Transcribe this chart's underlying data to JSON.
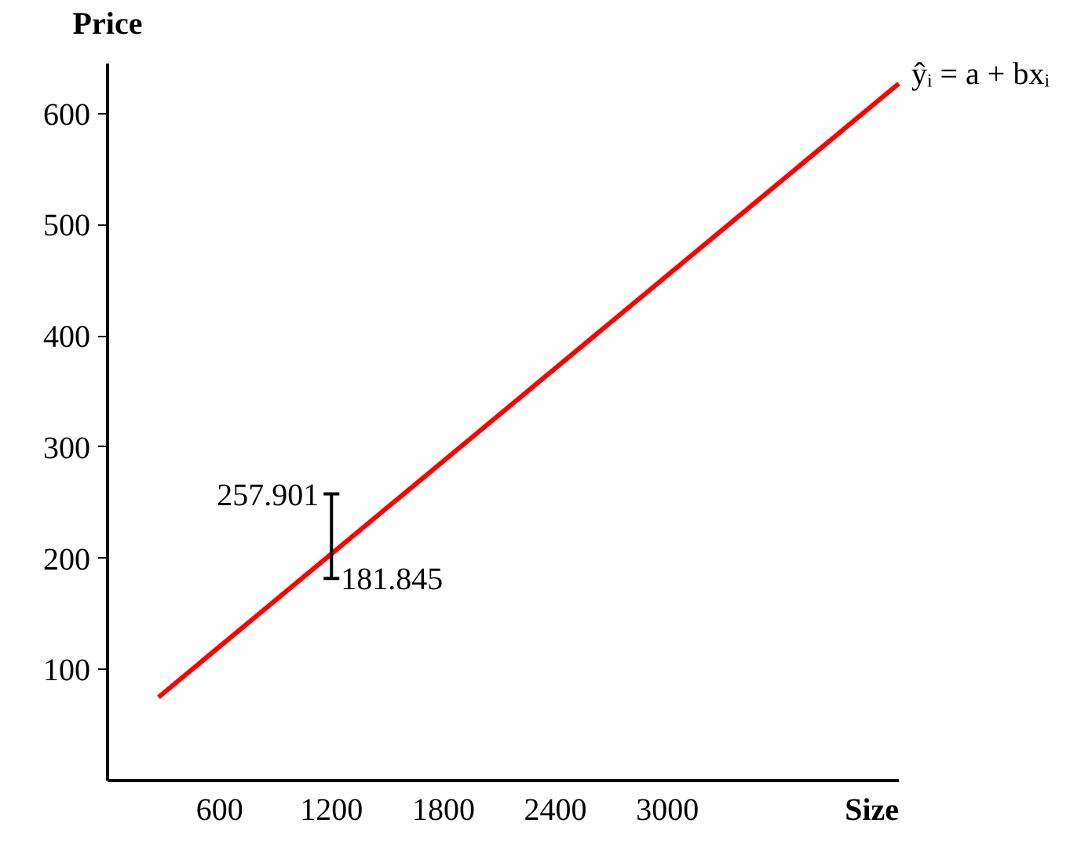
{
  "chart_data": {
    "type": "line",
    "xlabel": "Size",
    "ylabel": "Price",
    "xlim": [
      0,
      4240
    ],
    "ylim": [
      0,
      645
    ],
    "xticks": [
      600,
      1200,
      1800,
      2400,
      3000
    ],
    "yticks": [
      100,
      200,
      300,
      400,
      500,
      600
    ],
    "grid": false,
    "marker": "none",
    "line_style": "solid",
    "series": [
      {
        "name": "ŷᵢ = a + bxᵢ",
        "color": "#ff0000",
        "x": [
          273,
          4240
        ],
        "values": [
          75,
          627
        ]
      },
      {
        "color": "#000000",
        "x": [
          1200,
          1200
        ],
        "values": [
          181.845,
          257.901
        ]
      }
    ],
    "annotations": [
      {
        "text": "257.901",
        "x": 1200,
        "y": 257.901
      },
      {
        "text": "181.845",
        "x": 1200,
        "y": 181.845
      }
    ]
  }
}
